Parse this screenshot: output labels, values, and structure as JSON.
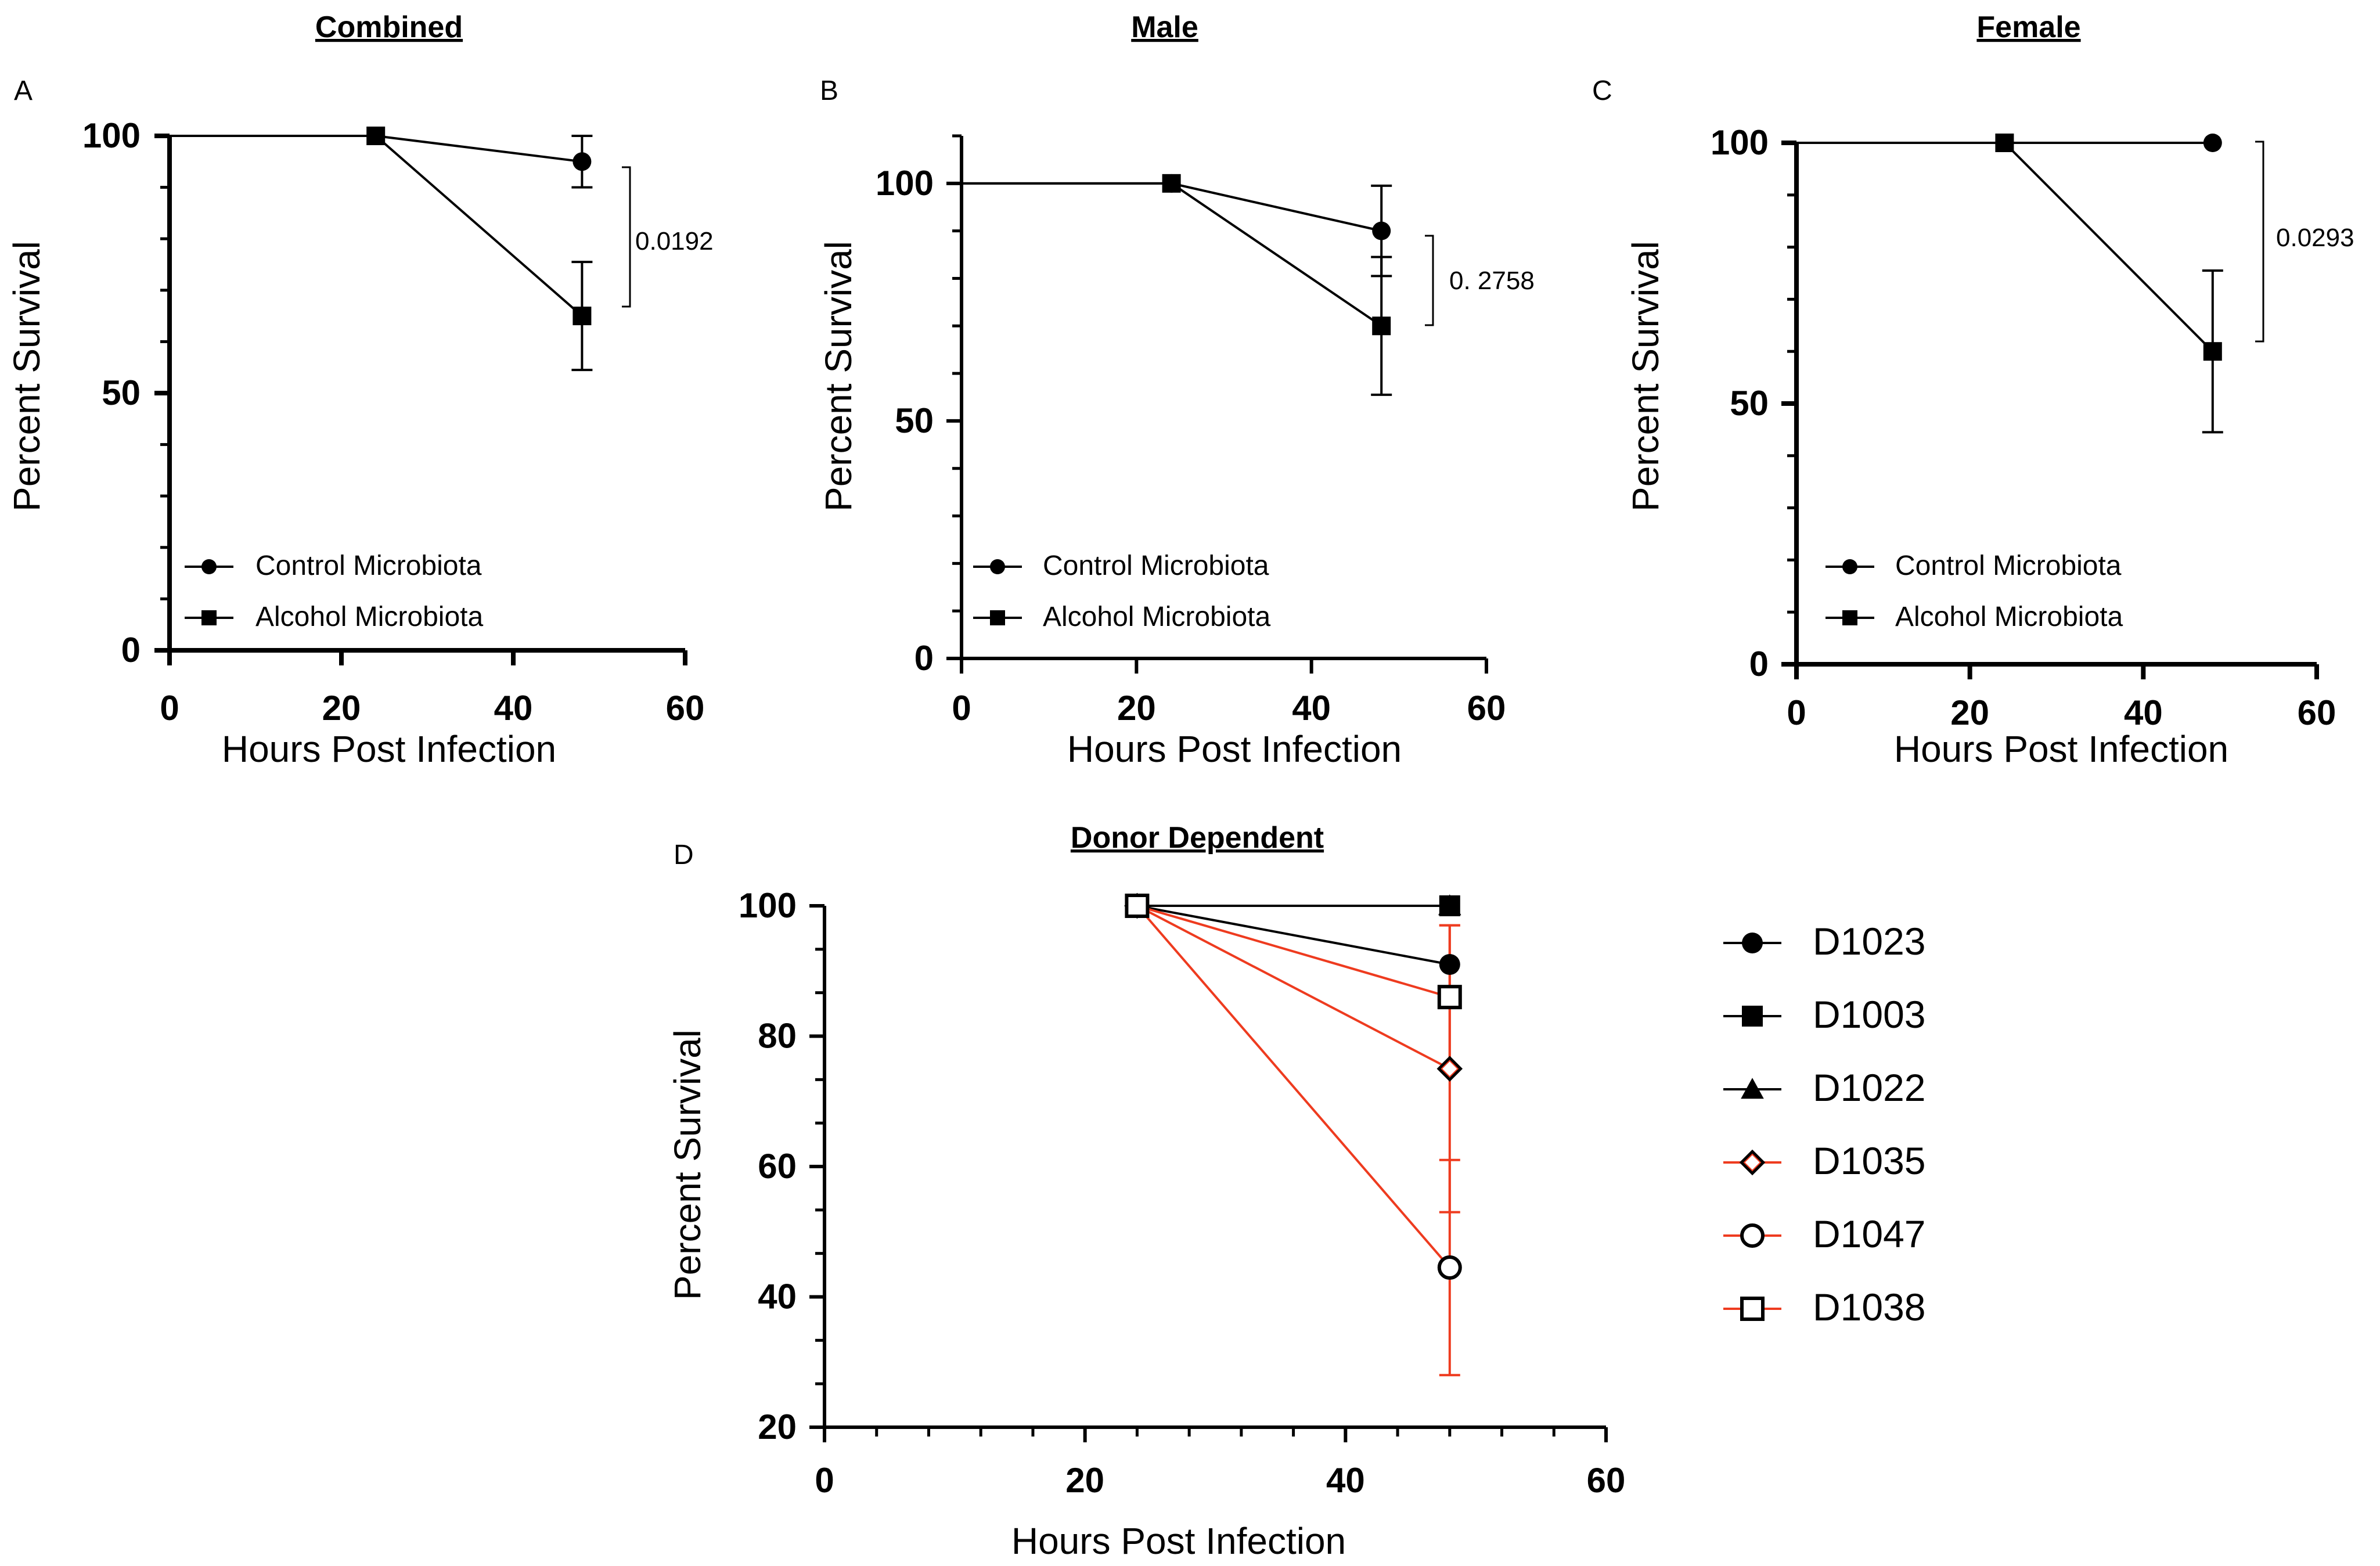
{
  "panels": [
    {
      "id": "A",
      "letter": "A",
      "title": "Combined",
      "xlabel": "Hours Post Infection",
      "ylabel": "Percent Survival",
      "xlim": [
        0,
        60
      ],
      "ylim": [
        0,
        100
      ],
      "xticks": [
        "0",
        "20",
        "40",
        "60"
      ],
      "yticks": [
        "0",
        "50",
        "100"
      ],
      "series": [
        {
          "name": "Control Microbiota",
          "marker": "circle",
          "color": "#000000",
          "points": [
            {
              "x": 0,
              "y": 100
            },
            {
              "x": 24,
              "y": 100
            },
            {
              "x": 48,
              "y": 95,
              "err": 5
            }
          ]
        },
        {
          "name": "Alcohol Microbiota",
          "marker": "square",
          "color": "#000000",
          "points": [
            {
              "x": 0,
              "y": 100
            },
            {
              "x": 24,
              "y": 100
            },
            {
              "x": 48,
              "y": 65,
              "err": 10.5
            }
          ]
        }
      ],
      "pvalue": "0.0192"
    },
    {
      "id": "B",
      "letter": "B",
      "title": "Male",
      "xlabel": "Hours Post Infection",
      "ylabel": "Percent Survival",
      "xlim": [
        0,
        60
      ],
      "ylim": [
        0,
        110
      ],
      "xticks": [
        "0",
        "20",
        "40",
        "60"
      ],
      "yticks": [
        "0",
        "50",
        "100"
      ],
      "series": [
        {
          "name": "Control Microbiota",
          "marker": "circle",
          "color": "#000000",
          "points": [
            {
              "x": 0,
              "y": 100
            },
            {
              "x": 24,
              "y": 100
            },
            {
              "x": 48,
              "y": 90,
              "err": 9.5
            }
          ]
        },
        {
          "name": "Alcohol Microbiota",
          "marker": "square",
          "color": "#000000",
          "points": [
            {
              "x": 0,
              "y": 100
            },
            {
              "x": 24,
              "y": 100
            },
            {
              "x": 48,
              "y": 70,
              "err": 14.5
            }
          ]
        }
      ],
      "pvalue": "0. 2758"
    },
    {
      "id": "C",
      "letter": "C",
      "title": "Female",
      "xlabel": "Hours Post Infection",
      "ylabel": "Percent Survival",
      "xlim": [
        0,
        60
      ],
      "ylim": [
        0,
        100
      ],
      "xticks": [
        "0",
        "20",
        "40",
        "60"
      ],
      "yticks": [
        "0",
        "50",
        "100"
      ],
      "series": [
        {
          "name": "Control Microbiota",
          "marker": "circle",
          "color": "#000000",
          "points": [
            {
              "x": 0,
              "y": 100
            },
            {
              "x": 24,
              "y": 100
            },
            {
              "x": 48,
              "y": 100
            }
          ]
        },
        {
          "name": "Alcohol Microbiota",
          "marker": "square",
          "color": "#000000",
          "points": [
            {
              "x": 0,
              "y": 100
            },
            {
              "x": 24,
              "y": 100
            },
            {
              "x": 48,
              "y": 60,
              "err": 15.5
            }
          ]
        }
      ],
      "pvalue": "0.0293"
    },
    {
      "id": "D",
      "letter": "D",
      "title": "Donor Dependent",
      "xlabel": "Hours Post Infection",
      "ylabel": "Percent Survival",
      "xlim": [
        0,
        60
      ],
      "ylim": [
        20,
        100
      ],
      "xticks": [
        "0",
        "20",
        "40",
        "60"
      ],
      "yticks": [
        "20",
        "40",
        "60",
        "80",
        "100"
      ],
      "series": [
        {
          "name": "D1023",
          "marker": "circle",
          "color": "#000000",
          "points": [
            {
              "x": 24,
              "y": 100
            },
            {
              "x": 48,
              "y": 91
            }
          ]
        },
        {
          "name": "D1003",
          "marker": "square",
          "color": "#000000",
          "points": [
            {
              "x": 24,
              "y": 100
            },
            {
              "x": 48,
              "y": 100
            }
          ]
        },
        {
          "name": "D1022",
          "marker": "triangle",
          "color": "#000000",
          "points": [
            {
              "x": 24,
              "y": 100
            },
            {
              "x": 48,
              "y": 100
            }
          ]
        },
        {
          "name": "D1035",
          "marker": "diamond-open",
          "color": "#ee3b1f",
          "points": [
            {
              "x": 24,
              "y": 100
            },
            {
              "x": 48,
              "y": 75,
              "err": 22
            }
          ]
        },
        {
          "name": "D1047",
          "marker": "circle-open",
          "color": "#ee3b1f",
          "points": [
            {
              "x": 24,
              "y": 100
            },
            {
              "x": 48,
              "y": 44.5,
              "err": 16.5
            }
          ]
        },
        {
          "name": "D1038",
          "marker": "square-open",
          "color": "#ee3b1f",
          "points": [
            {
              "x": 24,
              "y": 100
            },
            {
              "x": 48,
              "y": 86,
              "err": 11
            }
          ]
        }
      ]
    }
  ],
  "chart_data": [
    {
      "type": "line",
      "title": "Combined",
      "xlabel": "Hours Post Infection",
      "ylabel": "Percent Survival",
      "xlim": [
        0,
        60
      ],
      "ylim": [
        0,
        100
      ],
      "legend": "bottom-left",
      "x": [
        0,
        24,
        48
      ],
      "series": [
        {
          "name": "Control Microbiota",
          "values": [
            100,
            100,
            95
          ],
          "error": [
            0,
            0,
            5
          ]
        },
        {
          "name": "Alcohol Microbiota",
          "values": [
            100,
            100,
            65
          ],
          "error": [
            0,
            0,
            10.5
          ]
        }
      ],
      "annotations": [
        "0.0192"
      ]
    },
    {
      "type": "line",
      "title": "Male",
      "xlabel": "Hours Post Infection",
      "ylabel": "Percent Survival",
      "xlim": [
        0,
        60
      ],
      "ylim": [
        0,
        110
      ],
      "legend": "bottom-left",
      "x": [
        0,
        24,
        48
      ],
      "series": [
        {
          "name": "Control Microbiota",
          "values": [
            100,
            100,
            90
          ],
          "error": [
            0,
            0,
            9.5
          ]
        },
        {
          "name": "Alcohol Microbiota",
          "values": [
            100,
            100,
            70
          ],
          "error": [
            0,
            0,
            14.5
          ]
        }
      ],
      "annotations": [
        "0. 2758"
      ]
    },
    {
      "type": "line",
      "title": "Female",
      "xlabel": "Hours Post Infection",
      "ylabel": "Percent Survival",
      "xlim": [
        0,
        60
      ],
      "ylim": [
        0,
        100
      ],
      "legend": "bottom-left",
      "x": [
        0,
        24,
        48
      ],
      "series": [
        {
          "name": "Control Microbiota",
          "values": [
            100,
            100,
            100
          ],
          "error": [
            0,
            0,
            0
          ]
        },
        {
          "name": "Alcohol Microbiota",
          "values": [
            100,
            100,
            60
          ],
          "error": [
            0,
            0,
            15.5
          ]
        }
      ],
      "annotations": [
        "0.0293"
      ]
    },
    {
      "type": "line",
      "title": "Donor Dependent",
      "xlabel": "Hours Post Infection",
      "ylabel": "Percent Survival",
      "xlim": [
        0,
        60
      ],
      "ylim": [
        20,
        100
      ],
      "legend": "right",
      "x": [
        24,
        48
      ],
      "series": [
        {
          "name": "D1023",
          "values": [
            100,
            91
          ]
        },
        {
          "name": "D1003",
          "values": [
            100,
            100
          ]
        },
        {
          "name": "D1022",
          "values": [
            100,
            100
          ]
        },
        {
          "name": "D1035",
          "values": [
            100,
            75
          ],
          "error": [
            0,
            22
          ]
        },
        {
          "name": "D1047",
          "values": [
            100,
            44.5
          ],
          "error": [
            0,
            16.5
          ]
        },
        {
          "name": "D1038",
          "values": [
            100,
            86
          ],
          "error": [
            0,
            11
          ]
        }
      ]
    }
  ]
}
